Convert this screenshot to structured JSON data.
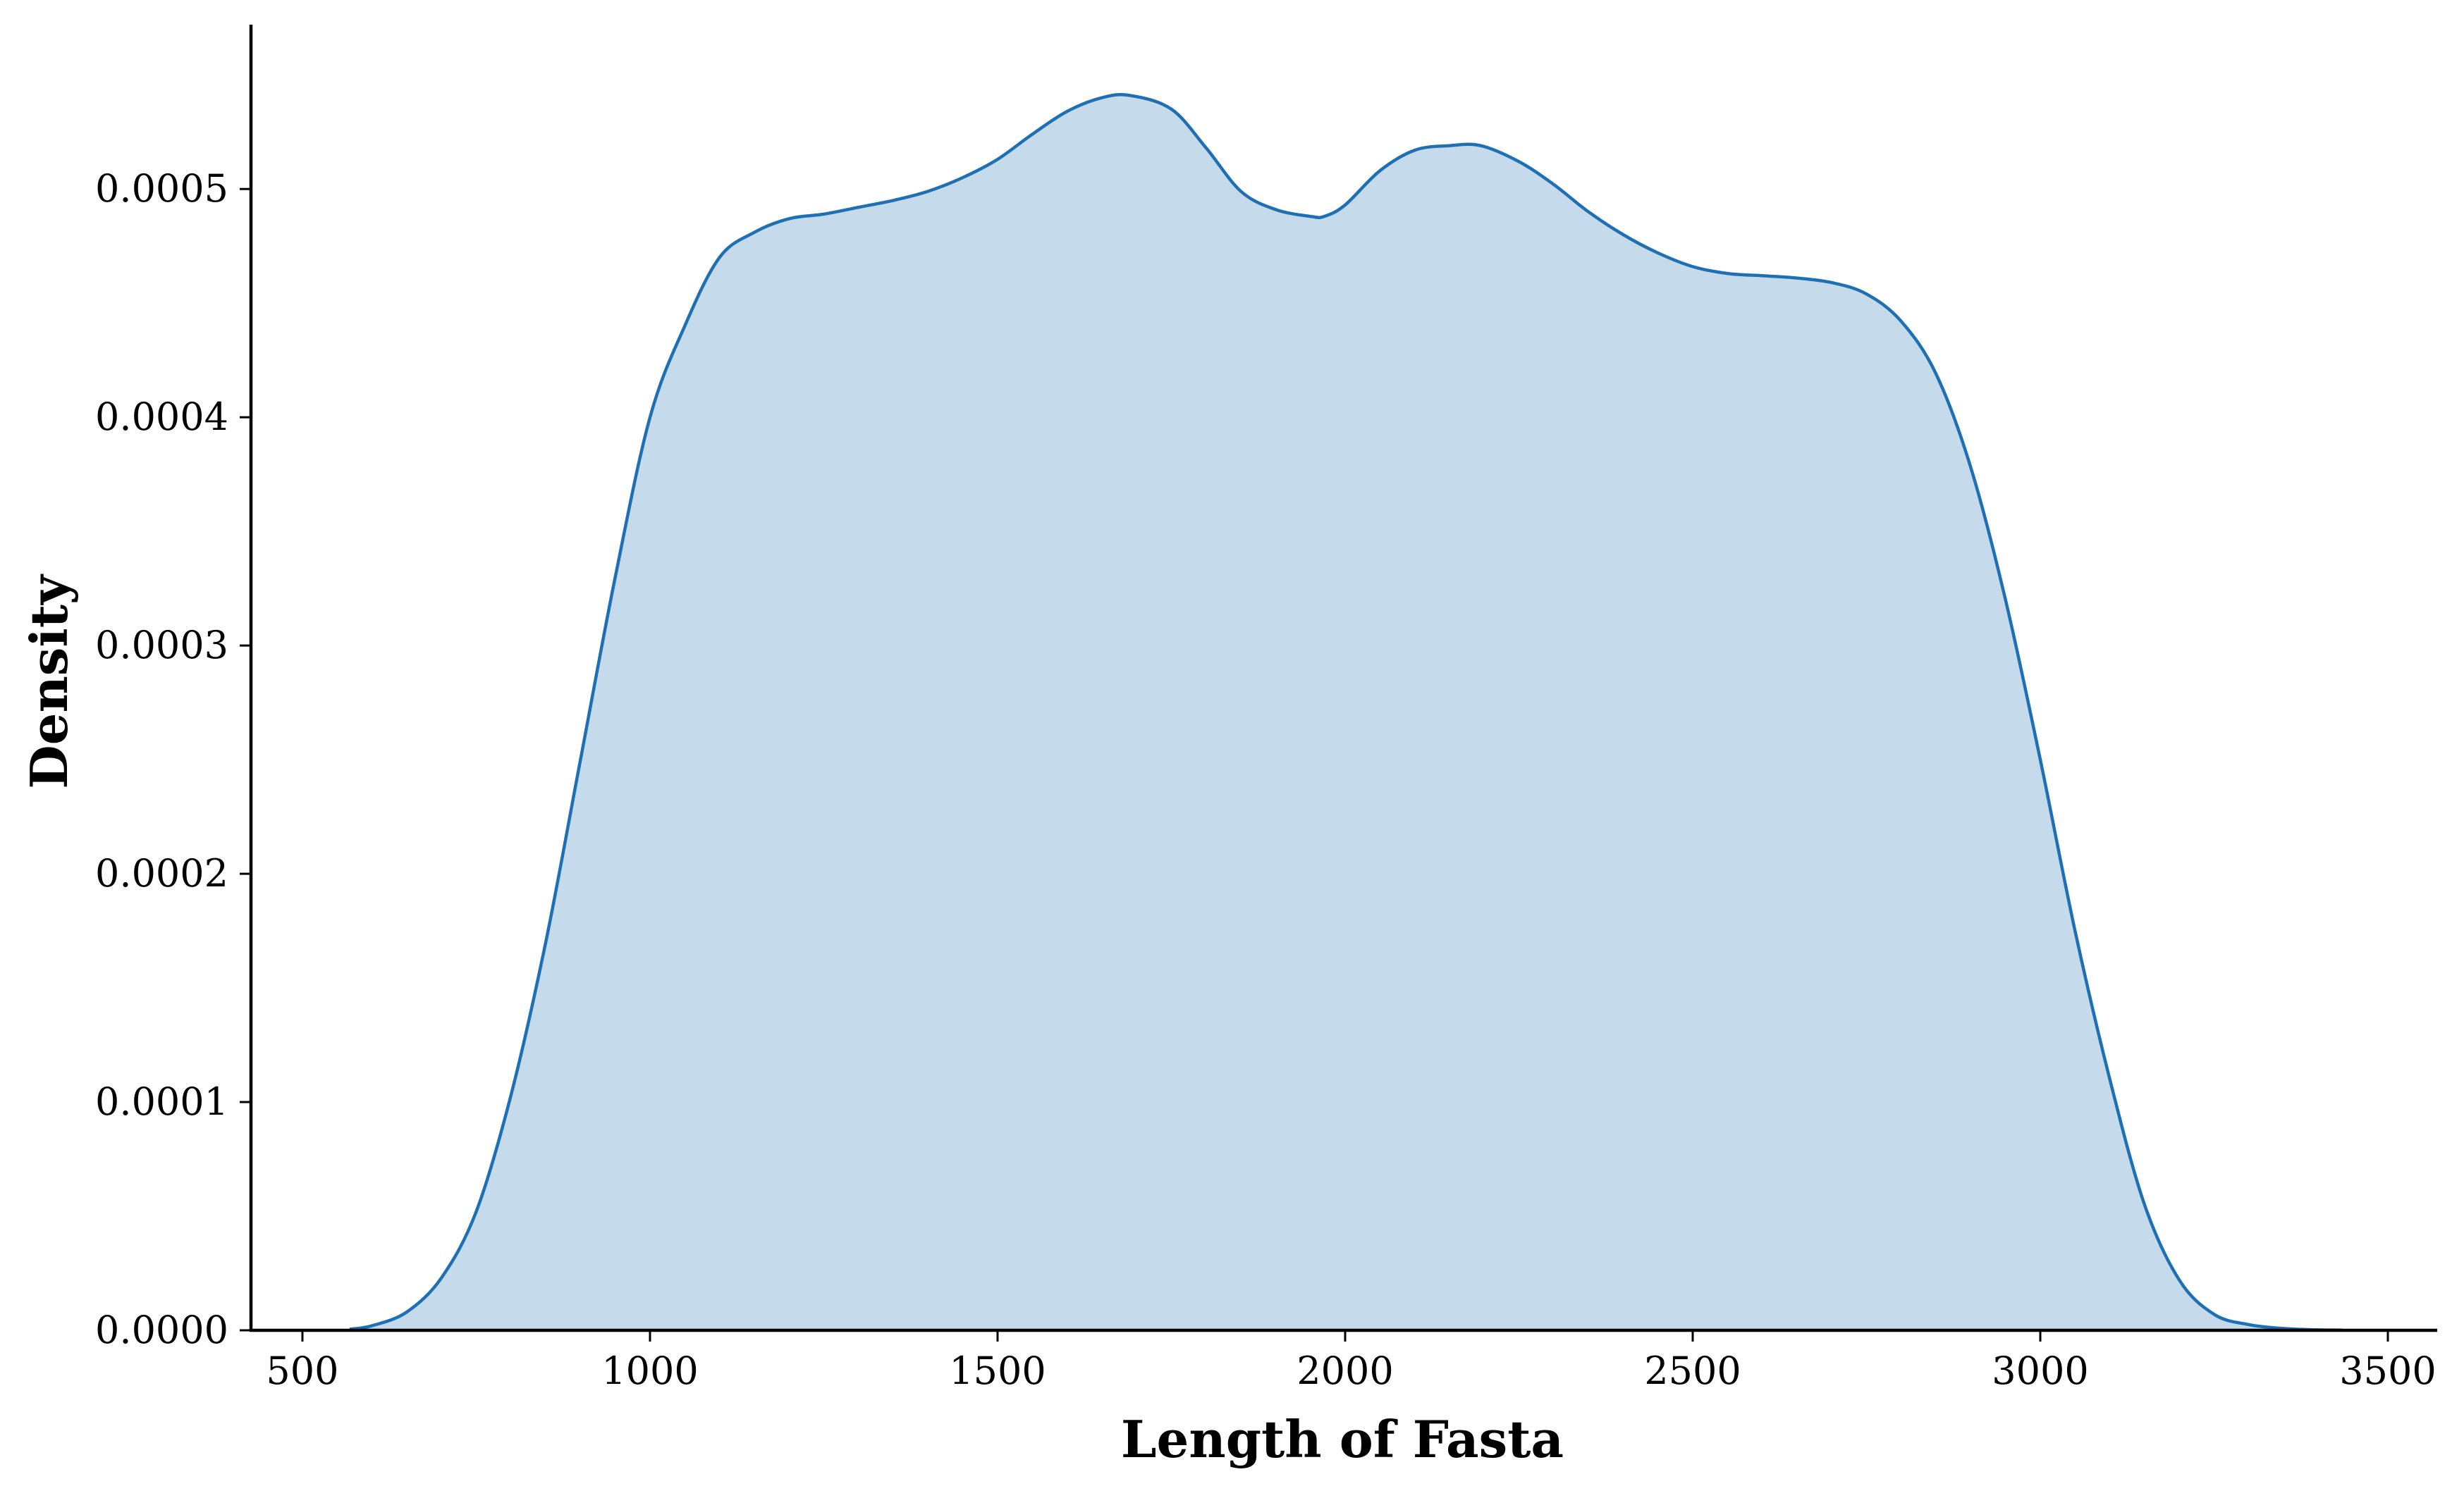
{
  "chart_data": {
    "type": "area",
    "title": "",
    "xlabel": "Length of Fasta",
    "ylabel": "Density",
    "xlim": [
      426,
      3571
    ],
    "ylim": [
      0,
      0.000572
    ],
    "x_ticks": [
      500,
      1000,
      1500,
      2000,
      2500,
      3000,
      3500
    ],
    "x_tick_labels": [
      "500",
      "1000",
      "1500",
      "2000",
      "2500",
      "3000",
      "3500"
    ],
    "y_ticks": [
      0,
      0.0001,
      0.0002,
      0.0003,
      0.0004,
      0.0005
    ],
    "y_tick_labels": [
      "0.0000",
      "0.0001",
      "0.0002",
      "0.0003",
      "0.0004",
      "0.0005"
    ],
    "grid": false,
    "series": [
      {
        "x": [
          568,
          600,
          650,
          700,
          750,
          800,
          850,
          900,
          950,
          1000,
          1050,
          1100,
          1150,
          1200,
          1250,
          1300,
          1350,
          1400,
          1450,
          1500,
          1550,
          1600,
          1650,
          1690,
          1750,
          1800,
          1850,
          1900,
          1950,
          1970,
          2000,
          2050,
          2100,
          2150,
          2195,
          2250,
          2300,
          2350,
          2400,
          2450,
          2500,
          2550,
          2600,
          2650,
          2700,
          2750,
          2800,
          2850,
          2900,
          2950,
          3000,
          3050,
          3100,
          3150,
          3200,
          3250,
          3300,
          3350,
          3400,
          3435
        ],
        "y": [
          5e-07,
          2e-06,
          8e-06,
          2.3e-05,
          5.2e-05,
          0.000103,
          0.00017,
          0.00025,
          0.00033,
          0.0004,
          0.00044,
          0.00047,
          0.000481,
          0.000487,
          0.000489,
          0.000492,
          0.000495,
          0.000499,
          0.000505,
          0.000513,
          0.000524,
          0.000534,
          0.00054,
          0.000541,
          0.000535,
          0.000518,
          0.000499,
          0.000491,
          0.000488,
          0.000488,
          0.000493,
          0.000508,
          0.000517,
          0.000519,
          0.000519,
          0.000512,
          0.000502,
          0.00049,
          0.00048,
          0.000472,
          0.000466,
          0.000463,
          0.000462,
          0.000461,
          0.000459,
          0.000454,
          0.000442,
          0.000419,
          0.000378,
          0.00032,
          0.00025,
          0.000175,
          0.00011,
          5.5e-05,
          2.2e-05,
          7e-06,
          2.5e-06,
          8e-07,
          2e-07,
          1e-07
        ]
      }
    ],
    "colors": {
      "line": "#1f6fb4",
      "fill": "#c5dbec",
      "axis": "#000000"
    }
  }
}
